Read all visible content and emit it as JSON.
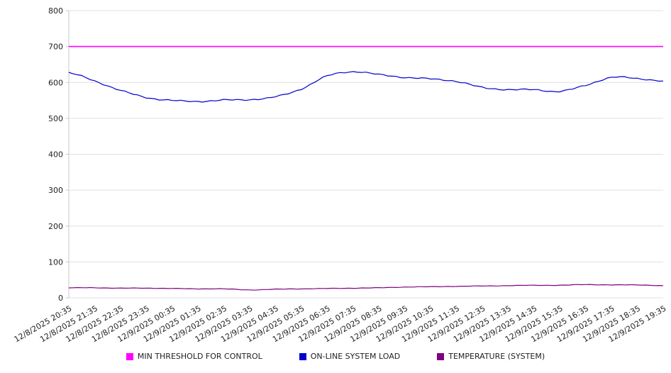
{
  "chart_data": {
    "type": "line",
    "title": "",
    "xlabel": "",
    "ylabel": "",
    "ylim": [
      0,
      800
    ],
    "y_ticks": [
      0,
      100,
      200,
      300,
      400,
      500,
      600,
      700,
      800
    ],
    "grid": true,
    "legend_position": "bottom",
    "categories": [
      "12/8/2025 20:35",
      "12/8/2025 21:35",
      "12/8/2025 22:35",
      "12/8/2025 23:35",
      "12/9/2025 00:35",
      "12/9/2025 01:35",
      "12/9/2025 02:35",
      "12/9/2025 03:35",
      "12/9/2025 04:35",
      "12/9/2025 05:35",
      "12/9/2025 06:35",
      "12/9/2025 07:35",
      "12/9/2025 08:35",
      "12/9/2025 09:35",
      "12/9/2025 10:35",
      "12/9/2025 11:35",
      "12/9/2025 12:35",
      "12/9/2025 13:35",
      "12/9/2025 14:35",
      "12/9/2025 15:35",
      "12/9/2025 16:35",
      "12/9/2025 17:35",
      "12/9/2025 18:35",
      "12/9/2025 19:35"
    ],
    "series": [
      {
        "name": "MIN THRESHOLD FOR CONTROL",
        "color": "#ff00ff",
        "values": [
          700,
          700,
          700,
          700,
          700,
          700,
          700,
          700,
          700,
          700,
          700,
          700,
          700,
          700,
          700,
          700,
          700,
          700,
          700,
          700,
          700,
          700,
          700,
          700
        ]
      },
      {
        "name": "ON-LINE SYSTEM LOAD",
        "color": "#0000cc",
        "values": [
          627,
          604,
          578,
          558,
          550,
          547,
          551,
          552,
          560,
          582,
          618,
          630,
          622,
          614,
          610,
          603,
          586,
          580,
          580,
          575,
          592,
          614,
          611,
          604
        ]
      },
      {
        "name": "TEMPERATURE (SYSTEM)",
        "color": "#800080",
        "values": [
          28,
          28,
          27,
          27,
          26,
          25,
          25,
          22,
          24,
          25,
          26,
          27,
          28,
          30,
          31,
          32,
          33,
          34,
          35,
          35,
          37,
          36,
          36,
          34
        ]
      }
    ]
  },
  "axes": {
    "grid_color": "#e0e0e0",
    "axis_color": "#c8c8c8",
    "tick_label_color": "#222222"
  }
}
